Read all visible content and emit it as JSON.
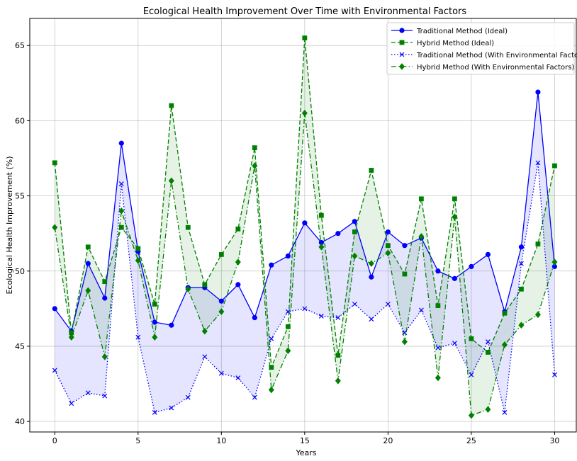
{
  "chart_data": {
    "type": "line",
    "title": "Ecological Health Improvement Over Time with Environmental Factors",
    "xlabel": "Years",
    "ylabel": "Ecological Health Improvement (%)",
    "xlim": [
      -1.5,
      31.3
    ],
    "ylim": [
      39.3,
      66.8
    ],
    "xticks": [
      0,
      5,
      10,
      15,
      20,
      25,
      30
    ],
    "yticks": [
      40,
      45,
      50,
      55,
      60,
      65
    ],
    "grid": true,
    "legend_position": "top-right",
    "x": [
      0,
      1,
      2,
      3,
      4,
      5,
      6,
      7,
      8,
      9,
      10,
      11,
      12,
      13,
      14,
      15,
      16,
      17,
      18,
      19,
      20,
      21,
      22,
      23,
      24,
      25,
      26,
      27,
      28,
      29,
      30
    ],
    "series": [
      {
        "name": "Traditional Method (Ideal)",
        "color": "#0000ff",
        "line_style": "solid",
        "marker": "circle",
        "values": [
          47.5,
          46.0,
          50.5,
          48.2,
          58.5,
          51.3,
          46.6,
          46.4,
          48.9,
          48.9,
          48.0,
          49.1,
          46.9,
          50.4,
          51.0,
          53.2,
          51.9,
          52.5,
          53.3,
          49.6,
          52.6,
          51.7,
          52.2,
          50.0,
          49.5,
          50.3,
          51.1,
          47.3,
          51.6,
          61.9,
          50.3
        ]
      },
      {
        "name": "Hybrid Method (Ideal)",
        "color": "#008000",
        "line_style": "dashed",
        "marker": "square",
        "values": [
          57.2,
          45.9,
          51.6,
          49.3,
          52.9,
          51.5,
          47.8,
          61.0,
          52.9,
          49.1,
          51.1,
          52.8,
          58.2,
          43.6,
          46.3,
          65.5,
          53.7,
          44.4,
          52.6,
          56.7,
          51.7,
          49.8,
          54.8,
          47.7,
          54.8,
          45.5,
          44.6,
          47.2,
          48.8,
          51.8,
          57.0
        ]
      },
      {
        "name": "Traditional Method (With Environmental Factors)",
        "color": "#0000ff",
        "line_style": "dotted",
        "marker": "x",
        "values": [
          43.4,
          41.2,
          41.9,
          41.7,
          55.8,
          45.6,
          40.6,
          40.9,
          41.6,
          44.3,
          43.2,
          42.9,
          41.6,
          45.5,
          47.3,
          47.5,
          47.0,
          46.9,
          47.8,
          46.8,
          47.8,
          45.9,
          47.4,
          44.9,
          45.2,
          43.1,
          45.3,
          40.6,
          50.5,
          57.2,
          43.1
        ]
      },
      {
        "name": "Hybrid Method (With Environmental Factors)",
        "color": "#008000",
        "line_style": "dashdot",
        "marker": "diamond",
        "values": [
          52.9,
          45.6,
          48.7,
          44.3,
          54.0,
          50.7,
          45.6,
          56.0,
          48.8,
          46.0,
          47.3,
          50.6,
          57.0,
          42.1,
          44.7,
          60.5,
          51.6,
          42.7,
          51.0,
          50.5,
          51.2,
          45.3,
          52.3,
          42.9,
          53.6,
          40.4,
          40.8,
          45.1,
          46.4,
          47.1,
          50.6
        ]
      }
    ],
    "fills": [
      {
        "between": [
          0,
          2
        ],
        "color": "#0000ff",
        "opacity": 0.1
      },
      {
        "between": [
          1,
          3
        ],
        "color": "#008000",
        "opacity": 0.1
      }
    ]
  }
}
